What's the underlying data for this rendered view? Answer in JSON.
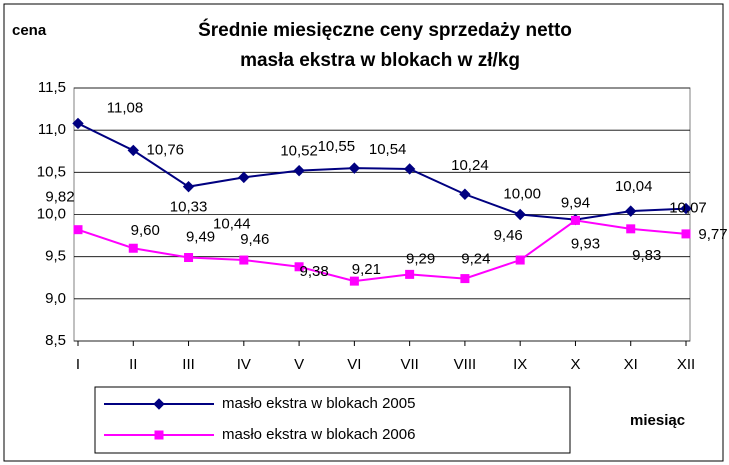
{
  "chart_data": {
    "type": "line",
    "title": [
      "Średnie miesięczne ceny sprzedaży netto",
      "masła ekstra w blokach w zł/kg"
    ],
    "y_label": "cena",
    "x_label": "miesiąc",
    "categories": [
      "I",
      "II",
      "III",
      "IV",
      "V",
      "VI",
      "VII",
      "VIII",
      "IX",
      "X",
      "XI",
      "XII"
    ],
    "series": [
      {
        "name": "masło ekstra  w  blokach 2005",
        "color": "#000080",
        "marker": "diamond",
        "values": [
          11.08,
          10.76,
          10.33,
          10.44,
          10.52,
          10.55,
          10.54,
          10.24,
          10.0,
          9.94,
          10.04,
          10.07
        ],
        "value_labels": [
          "11,08",
          "10,76",
          "10,33",
          "10,44",
          "10,52",
          "10,55",
          "10,54",
          "10,24",
          "10,00",
          "9,94",
          "10,04",
          "10,07"
        ]
      },
      {
        "name": "masło ekstra  w  blokach 2006",
        "color": "#ff00ff",
        "marker": "square",
        "values": [
          9.82,
          9.6,
          9.49,
          9.46,
          9.38,
          9.21,
          9.29,
          9.24,
          9.46,
          9.93,
          9.83,
          9.77
        ],
        "value_labels": [
          "9,82",
          "9,60",
          "9,49",
          "9,46",
          "9,38",
          "9,21",
          "9,29",
          "9,24",
          "9,46",
          "9,93",
          "9,83",
          "9,77"
        ]
      }
    ],
    "ylim": [
      8.5,
      11.5
    ],
    "yticks": [
      {
        "value": 8.5,
        "label": "8,5"
      },
      {
        "value": 9.0,
        "label": "9,0"
      },
      {
        "value": 9.5,
        "label": "9,5"
      },
      {
        "value": 10.0,
        "label": "10,0"
      },
      {
        "value": 10.5,
        "label": "10,5"
      },
      {
        "value": 11.0,
        "label": "11,0"
      },
      {
        "value": 11.5,
        "label": "11,5"
      }
    ],
    "grid": true,
    "legend": "bottom-left"
  }
}
